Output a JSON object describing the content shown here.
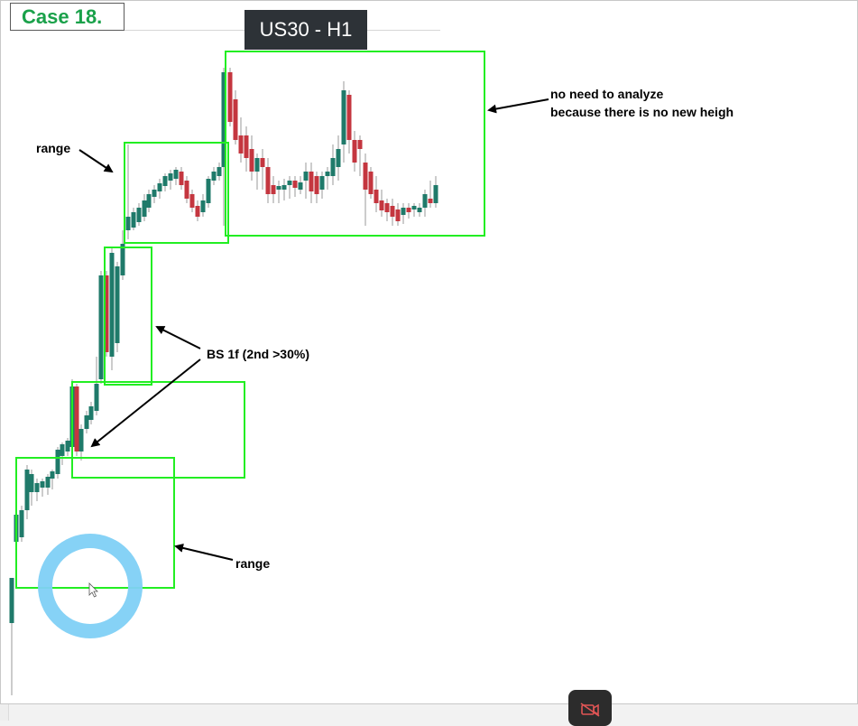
{
  "slide": {
    "case_title": "Case 18.",
    "symbol": "US30 - H1"
  },
  "annotations": {
    "range_top": "range",
    "range_bottom": "range",
    "bs_label": "BS 1f (2nd >30%)",
    "no_analyze_line1": "no need to analyze",
    "no_analyze_line2": "because there is no new heigh"
  },
  "colors": {
    "bull": "#1f7a6a",
    "bear": "#c4363f",
    "wick": "#9a9a9a",
    "highlight_box": "#22ee22",
    "click_ring": "#7fd0f5",
    "title_green": "#1aa14a"
  },
  "icons": {
    "bottom_button": "no-camera-icon",
    "cursor": "mouse-pointer-icon"
  }
}
